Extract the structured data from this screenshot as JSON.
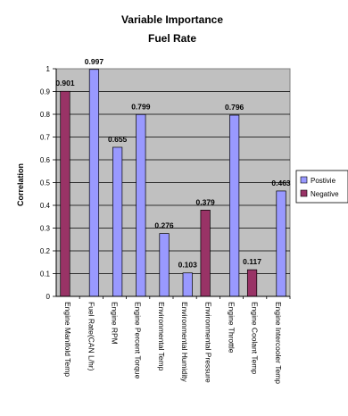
{
  "chart_data": {
    "type": "bar",
    "title": "Variable Importance",
    "subtitle": "Fuel Rate",
    "ylabel": "Correlation",
    "xlabel": "",
    "ylim": [
      0,
      1
    ],
    "yticks": [
      "0",
      "0.1",
      "0.2",
      "0.3",
      "0.4",
      "0.5",
      "0.6",
      "0.7",
      "0.8",
      "0.9",
      "1"
    ],
    "grid": true,
    "legend_position": "right",
    "categories": [
      "Engine Manifold Temp",
      "Fuel Rate(CAN L/hr)",
      "Engine RPM",
      "Engine Percent Torque",
      "Environmental Temp",
      "Environmental Humidity",
      "Environmental Pressure",
      "Engine Throttle",
      "Engine Coolant Temp",
      "Engine Intercooler Temp"
    ],
    "series": [
      {
        "name": "Postivie",
        "color": "#9999ff",
        "values": [
          null,
          0.997,
          0.655,
          0.799,
          0.276,
          0.103,
          null,
          0.796,
          null,
          0.463
        ],
        "labels": [
          null,
          "0.997",
          "0.655",
          "0.799",
          "0.276",
          "0.103",
          null,
          "0.796",
          null,
          "0.463"
        ]
      },
      {
        "name": "Negative",
        "color": "#993366",
        "values": [
          0.901,
          null,
          null,
          null,
          null,
          null,
          0.379,
          null,
          0.117,
          null
        ],
        "labels": [
          "0.901",
          null,
          null,
          null,
          null,
          null,
          "0.379",
          null,
          "0.117",
          null
        ]
      }
    ],
    "plot_background": "#c0c0c0"
  }
}
